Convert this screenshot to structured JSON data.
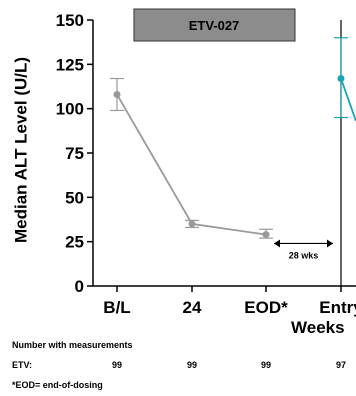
{
  "chart_data": {
    "type": "line",
    "title": "ETV-027",
    "ylabel": "Median ALT Level (U/L)",
    "xlabel": "Weeks",
    "ylim": [
      0,
      150
    ],
    "yticks": [
      0,
      25,
      50,
      75,
      100,
      125,
      150
    ],
    "categories": [
      "B/L",
      "24",
      "EOD*",
      "Entry"
    ],
    "series": [
      {
        "values": [
          108,
          35,
          29,
          null
        ],
        "error_low": [
          99,
          33,
          27,
          null
        ],
        "error_high": [
          117,
          37,
          32,
          null
        ],
        "color": "#999999"
      },
      {
        "values": [
          null,
          null,
          null,
          117
        ],
        "error_low": [
          null,
          null,
          null,
          95
        ],
        "error_high": [
          null,
          null,
          null,
          140
        ],
        "color": "#1aa3b3"
      }
    ],
    "annotation": {
      "label": "28 wks",
      "from_category": 2,
      "to_category": 3,
      "y": 24
    },
    "grid": false
  },
  "measurements": {
    "heading": "Number with measurements",
    "row_label": "ETV:",
    "counts": [
      "99",
      "99",
      "99",
      "97"
    ]
  },
  "footnote": "*EOD= end-of-dosing"
}
